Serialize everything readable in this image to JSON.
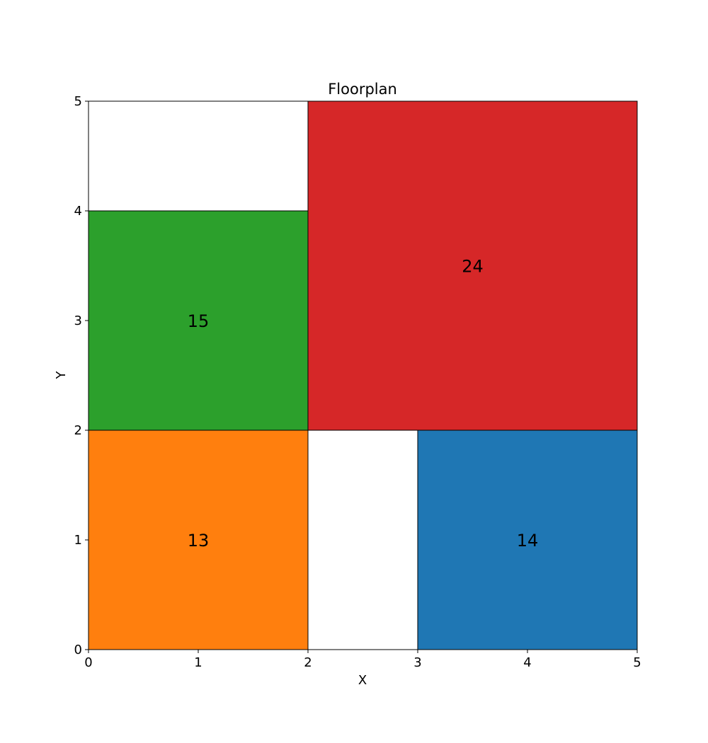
{
  "chart_data": {
    "type": "heatmap",
    "title": "Floorplan",
    "xlabel": "X",
    "ylabel": "Y",
    "xlim": [
      0,
      5
    ],
    "ylim": [
      0,
      5
    ],
    "xticks": [
      "0",
      "1",
      "2",
      "3",
      "4",
      "5"
    ],
    "yticks": [
      "0",
      "1",
      "2",
      "3",
      "4",
      "5"
    ],
    "grid": false,
    "rooms": [
      {
        "label": "13",
        "x": 0,
        "y": 0,
        "width": 2,
        "height": 2,
        "color": "#ff7f0e",
        "text_color": "#000000"
      },
      {
        "label": "14",
        "x": 3,
        "y": 0,
        "width": 2,
        "height": 2,
        "color": "#1f77b4",
        "text_color": "#ffffff"
      },
      {
        "label": "15",
        "x": 0,
        "y": 2,
        "width": 2,
        "height": 2,
        "color": "#2ca02c",
        "text_color": "#ffffff"
      },
      {
        "label": "24",
        "x": 2,
        "y": 2,
        "width": 3,
        "height": 3,
        "color": "#d62728",
        "text_color": "#ffffff"
      }
    ]
  }
}
